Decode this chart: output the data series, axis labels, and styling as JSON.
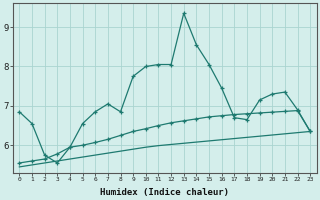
{
  "xlabel": "Humidex (Indice chaleur)",
  "bg_color": "#d4eeeb",
  "grid_color": "#aad4d0",
  "line_color": "#1e7a70",
  "xlim": [
    -0.5,
    23.5
  ],
  "ylim": [
    5.3,
    9.6
  ],
  "yticks": [
    6,
    7,
    8,
    9
  ],
  "xticks": [
    0,
    1,
    2,
    3,
    4,
    5,
    6,
    7,
    8,
    9,
    10,
    11,
    12,
    13,
    14,
    15,
    16,
    17,
    18,
    19,
    20,
    21,
    22,
    23
  ],
  "line1_x": [
    0,
    1,
    2,
    3,
    4,
    5,
    6,
    7,
    8,
    9,
    10,
    11,
    12,
    13,
    14,
    15,
    16,
    17,
    18,
    19,
    20,
    21,
    22,
    23
  ],
  "line1_y": [
    6.85,
    6.55,
    5.75,
    5.55,
    5.95,
    6.55,
    6.85,
    7.05,
    6.85,
    7.75,
    8.0,
    8.05,
    8.05,
    9.35,
    8.55,
    8.05,
    7.45,
    6.7,
    6.65,
    7.15,
    7.3,
    7.35,
    6.9,
    6.35
  ],
  "line2_x": [
    0,
    1,
    2,
    3,
    4,
    5,
    6,
    7,
    8,
    9,
    10,
    11,
    12,
    13,
    14,
    15,
    16,
    17,
    18,
    19,
    20,
    21,
    22,
    23
  ],
  "line2_y": [
    5.55,
    5.6,
    5.65,
    5.78,
    5.95,
    6.0,
    6.07,
    6.15,
    6.25,
    6.35,
    6.42,
    6.5,
    6.57,
    6.62,
    6.67,
    6.72,
    6.75,
    6.78,
    6.8,
    6.82,
    6.84,
    6.86,
    6.88,
    6.35
  ],
  "line3_x": [
    0,
    1,
    2,
    3,
    4,
    5,
    6,
    7,
    8,
    9,
    10,
    11,
    12,
    13,
    14,
    15,
    16,
    17,
    18,
    19,
    20,
    21,
    22,
    23
  ],
  "line3_y": [
    5.45,
    5.5,
    5.55,
    5.6,
    5.65,
    5.7,
    5.75,
    5.8,
    5.85,
    5.9,
    5.95,
    5.99,
    6.02,
    6.05,
    6.08,
    6.11,
    6.14,
    6.17,
    6.2,
    6.23,
    6.26,
    6.29,
    6.32,
    6.35
  ]
}
